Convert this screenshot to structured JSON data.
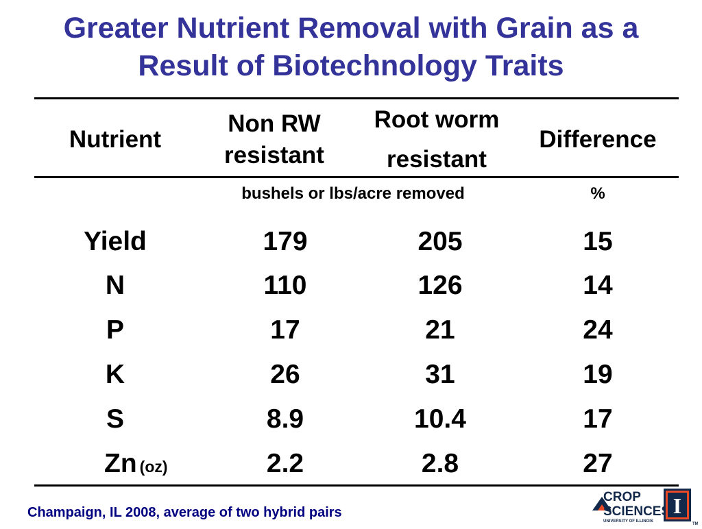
{
  "title_line1": "Greater Nutrient Removal with Grain as a",
  "title_line2": "Result of Biotechnology Traits",
  "table": {
    "headers": {
      "nutrient": "Nutrient",
      "non_rw_line1": "Non RW",
      "non_rw_line2": "resistant",
      "rw_line1": "Root worm",
      "rw_line2": "resistant",
      "difference": "Difference"
    },
    "units": {
      "removed": "bushels or lbs/acre removed",
      "percent": "%"
    },
    "rows": [
      {
        "nutrient": "Yield",
        "suffix": "",
        "non_rw": "179",
        "rw": "205",
        "difference": "15"
      },
      {
        "nutrient": "N",
        "suffix": "",
        "non_rw": "110",
        "rw": "126",
        "difference": "14"
      },
      {
        "nutrient": "P",
        "suffix": "",
        "non_rw": "17",
        "rw": "21",
        "difference": "24"
      },
      {
        "nutrient": "K",
        "suffix": "",
        "non_rw": "26",
        "rw": "31",
        "difference": "19"
      },
      {
        "nutrient": "S",
        "suffix": "",
        "non_rw": "8.9",
        "rw": "10.4",
        "difference": "17"
      },
      {
        "nutrient": "Zn",
        "suffix": "(oz)",
        "non_rw": "2.2",
        "rw": "2.8",
        "difference": "27"
      }
    ]
  },
  "footnote": "Champaign, IL  2008, average of two hybrid pairs",
  "logo": {
    "line1": "CROP",
    "line2": "SCIENCES",
    "subtext": "UNIVERSITY OF ILLINOIS",
    "mark": "I",
    "tm": "TM"
  },
  "colors": {
    "title": "#333399",
    "footnote": "#000080",
    "logo_blue": "#13294B",
    "logo_orange": "#E84A27"
  }
}
